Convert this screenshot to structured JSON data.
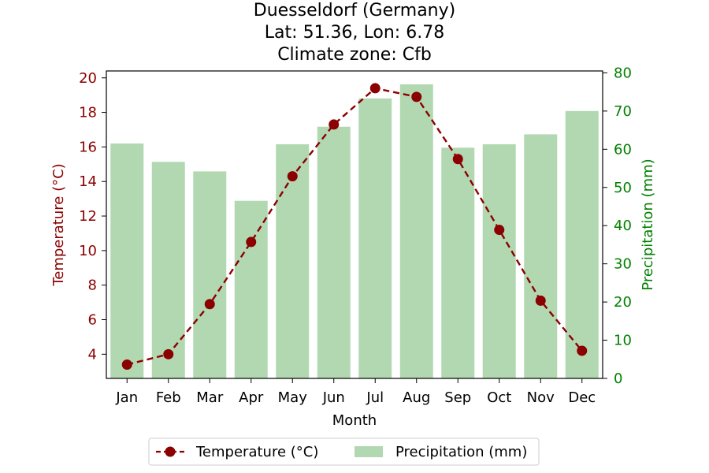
{
  "chart_data": {
    "type": "bar+line",
    "title_lines": [
      "Duesseldorf (Germany)",
      "Lat: 51.36, Lon: 6.78",
      "Climate zone: Cfb"
    ],
    "xlabel": "Month",
    "ylabel_left": "Temperature (°C)",
    "ylabel_right": "Precipitation (mm)",
    "categories": [
      "Jan",
      "Feb",
      "Mar",
      "Apr",
      "May",
      "Jun",
      "Jul",
      "Aug",
      "Sep",
      "Oct",
      "Nov",
      "Dec"
    ],
    "series": [
      {
        "name": "Temperature (°C)",
        "kind": "line",
        "axis": "left",
        "color": "#8b0000",
        "values": [
          3.4,
          4.0,
          6.9,
          10.5,
          14.3,
          17.3,
          19.4,
          18.9,
          15.3,
          11.2,
          7.1,
          4.2
        ]
      },
      {
        "name": "Precipitation (mm)",
        "kind": "bar",
        "axis": "right",
        "color": "#b2d8b2",
        "values": [
          61.5,
          56.7,
          54.2,
          46.5,
          61.3,
          65.9,
          73.3,
          77.0,
          60.4,
          61.3,
          63.9,
          70.0
        ]
      }
    ],
    "ylim_left": [
      2.6,
      20.4
    ],
    "yticks_left": [
      4,
      6,
      8,
      10,
      12,
      14,
      16,
      18,
      20
    ],
    "ylim_right": [
      0,
      80.5
    ],
    "yticks_right": [
      0,
      10,
      20,
      30,
      40,
      50,
      60,
      70,
      80
    ],
    "left_axis_color": "#8b0000",
    "right_axis_color": "#008000",
    "grid": false,
    "legend_position": "bottom-center"
  }
}
